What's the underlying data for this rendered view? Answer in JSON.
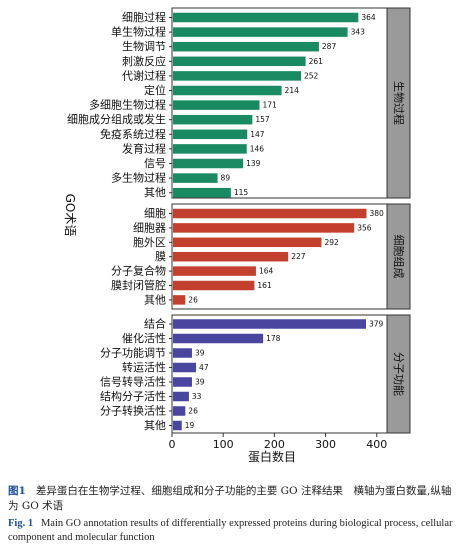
{
  "chart_data": {
    "type": "bar",
    "orientation": "horizontal",
    "ylabel": "GO术语",
    "xlabel": "蛋白数目",
    "xlim": [
      0,
      420
    ],
    "xticks": [
      0,
      100,
      200,
      300,
      400
    ],
    "panels": [
      {
        "name": "生物过程",
        "color": "#1a8a62",
        "categories": [
          "细胞过程",
          "单生物过程",
          "生物调节",
          "刺激反应",
          "代谢过程",
          "定位",
          "多细胞生物过程",
          "细胞成分组成或发生",
          "免疫系统过程",
          "发育过程",
          "信号",
          "多生物过程",
          "其他"
        ],
        "values": [
          364,
          343,
          287,
          261,
          252,
          214,
          171,
          157,
          147,
          146,
          139,
          89,
          115
        ]
      },
      {
        "name": "细胞组成",
        "color": "#c4402e",
        "categories": [
          "细胞",
          "细胞器",
          "胞外区",
          "膜",
          "分子复合物",
          "膜封闭管腔",
          "其他"
        ],
        "values": [
          380,
          356,
          292,
          227,
          164,
          161,
          26
        ]
      },
      {
        "name": "分子功能",
        "color": "#4a46a0",
        "categories": [
          "结合",
          "催化活性",
          "分子功能调节",
          "转运活性",
          "信号转导活性",
          "结构分子活性",
          "分子转换活性",
          "其他"
        ],
        "values": [
          379,
          178,
          39,
          47,
          39,
          33,
          26,
          19
        ]
      }
    ]
  },
  "caption": {
    "zh_label": "图1",
    "zh_text": "差异蛋白在生物学过程、细胞组成和分子功能的主要 GO 注释结果　横轴为蛋白数量,纵轴为 GO 术语",
    "en_label": "Fig. 1",
    "en_text": "Main GO annotation results of differentially expressed proteins during biological process, cellular component and molecular function"
  }
}
